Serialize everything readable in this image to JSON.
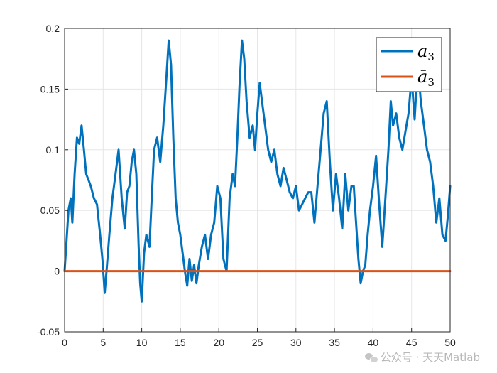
{
  "chart_data": {
    "type": "line",
    "title": "",
    "xlabel": "",
    "ylabel": "",
    "xlim": [
      0,
      50
    ],
    "ylim": [
      -0.05,
      0.2
    ],
    "grid": true,
    "legend_location": "top-right",
    "xticks": [
      0,
      5,
      10,
      15,
      20,
      25,
      30,
      35,
      40,
      45,
      50
    ],
    "yticks": [
      -0.05,
      0,
      0.05,
      0.1,
      0.15,
      0.2
    ],
    "ytick_labels": [
      "-0.05",
      "0",
      "0.05",
      "0.1",
      "0.15",
      "0.2"
    ],
    "series": [
      {
        "name": "a",
        "name_subscript": "3",
        "color": "#0072BD",
        "x": [
          0,
          0.2,
          0.5,
          0.8,
          1.0,
          1.3,
          1.6,
          1.9,
          2.2,
          2.5,
          2.8,
          3.1,
          3.4,
          3.8,
          4.2,
          4.6,
          4.9,
          5.2,
          5.5,
          5.8,
          6.2,
          6.6,
          7.0,
          7.4,
          7.8,
          8.1,
          8.4,
          8.7,
          9.0,
          9.3,
          9.6,
          9.8,
          10.0,
          10.3,
          10.6,
          11.0,
          11.3,
          11.6,
          12.0,
          12.4,
          12.8,
          13.2,
          13.5,
          13.8,
          14.1,
          14.4,
          14.7,
          15.0,
          15.3,
          15.6,
          15.9,
          16.2,
          16.5,
          16.8,
          17.1,
          17.4,
          17.8,
          18.2,
          18.6,
          19.0,
          19.4,
          19.8,
          20.2,
          20.6,
          21.0,
          21.4,
          21.8,
          22.1,
          22.4,
          22.7,
          23.0,
          23.3,
          23.6,
          24.0,
          24.4,
          24.7,
          25.0,
          25.3,
          25.6,
          26.0,
          26.4,
          26.8,
          27.2,
          27.6,
          28.0,
          28.4,
          28.8,
          29.2,
          29.6,
          30.0,
          30.4,
          30.8,
          31.2,
          31.6,
          32.0,
          32.4,
          32.8,
          33.2,
          33.6,
          34.0,
          34.4,
          34.8,
          35.2,
          35.6,
          36.0,
          36.4,
          36.8,
          37.2,
          37.5,
          37.8,
          38.1,
          38.4,
          38.7,
          39.0,
          39.3,
          39.6,
          40.0,
          40.4,
          40.8,
          41.2,
          41.6,
          42.0,
          42.3,
          42.6,
          43.0,
          43.4,
          43.8,
          44.2,
          44.6,
          45.0,
          45.4,
          45.8,
          46.2,
          46.6,
          47.0,
          47.4,
          47.8,
          48.2,
          48.6,
          49.0,
          49.4,
          49.7,
          50.0
        ],
        "y": [
          0.0,
          0.02,
          0.05,
          0.06,
          0.04,
          0.08,
          0.11,
          0.105,
          0.12,
          0.1,
          0.08,
          0.075,
          0.07,
          0.06,
          0.055,
          0.03,
          0.01,
          -0.018,
          0.005,
          0.03,
          0.06,
          0.08,
          0.1,
          0.06,
          0.035,
          0.065,
          0.07,
          0.09,
          0.1,
          0.08,
          0.02,
          -0.01,
          -0.025,
          0.015,
          0.03,
          0.02,
          0.06,
          0.1,
          0.11,
          0.09,
          0.12,
          0.16,
          0.19,
          0.17,
          0.11,
          0.06,
          0.04,
          0.03,
          0.015,
          0.0,
          -0.012,
          0.01,
          -0.008,
          0.005,
          -0.01,
          0.005,
          0.02,
          0.03,
          0.01,
          0.03,
          0.04,
          0.07,
          0.06,
          0.01,
          0.0,
          0.06,
          0.08,
          0.07,
          0.11,
          0.155,
          0.19,
          0.175,
          0.14,
          0.11,
          0.12,
          0.1,
          0.13,
          0.155,
          0.14,
          0.12,
          0.1,
          0.09,
          0.1,
          0.08,
          0.07,
          0.085,
          0.075,
          0.065,
          0.06,
          0.07,
          0.05,
          0.055,
          0.06,
          0.065,
          0.065,
          0.04,
          0.07,
          0.1,
          0.13,
          0.14,
          0.09,
          0.05,
          0.08,
          0.06,
          0.035,
          0.08,
          0.05,
          0.07,
          0.07,
          0.04,
          0.01,
          -0.01,
          0.0,
          0.005,
          0.03,
          0.05,
          0.07,
          0.095,
          0.055,
          0.02,
          0.06,
          0.1,
          0.14,
          0.12,
          0.13,
          0.11,
          0.1,
          0.115,
          0.13,
          0.16,
          0.125,
          0.17,
          0.14,
          0.12,
          0.1,
          0.09,
          0.07,
          0.04,
          0.06,
          0.03,
          0.025,
          0.045,
          0.07
        ]
      },
      {
        "name": "ā",
        "name_subscript": "3",
        "color": "#D95319",
        "x": [
          0,
          50
        ],
        "y": [
          0,
          0
        ]
      }
    ]
  },
  "watermark": {
    "text": "公众号 · 天天Matlab",
    "icon": "wechat-icon"
  }
}
